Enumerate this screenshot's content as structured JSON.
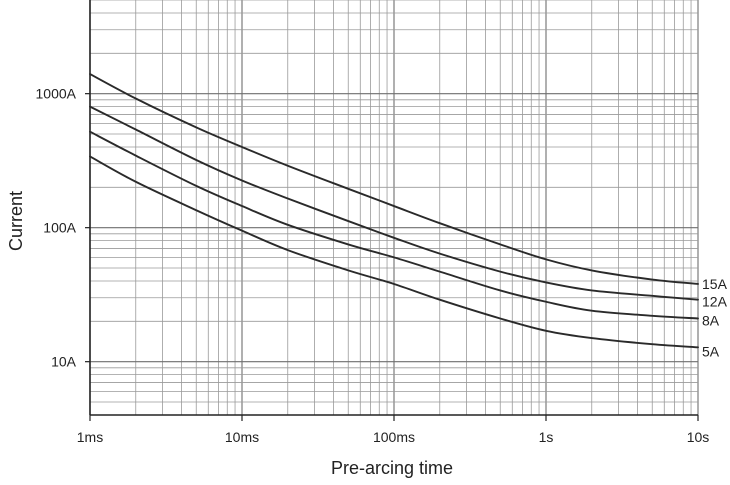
{
  "chart_data": {
    "type": "line",
    "title": "",
    "xlabel": "Pre-arcing time",
    "ylabel": "Current",
    "x_scale": "log",
    "y_scale": "log",
    "xlim": [
      0.001,
      10
    ],
    "ylim": [
      4,
      5000
    ],
    "grid": true,
    "legend": "inline labels at right end of curves",
    "x_ticks": [
      {
        "value": 0.001,
        "label": "1ms"
      },
      {
        "value": 0.01,
        "label": "10ms"
      },
      {
        "value": 0.1,
        "label": "100ms"
      },
      {
        "value": 1,
        "label": "1s"
      },
      {
        "value": 10,
        "label": "10s"
      }
    ],
    "y_ticks": [
      {
        "value": 10,
        "label": "10A"
      },
      {
        "value": 100,
        "label": "100A"
      },
      {
        "value": 1000,
        "label": "1000A"
      }
    ],
    "x": [
      0.001,
      0.002,
      0.005,
      0.01,
      0.02,
      0.05,
      0.1,
      0.2,
      0.5,
      1,
      2,
      5,
      10
    ],
    "series": [
      {
        "name": "15A",
        "values": [
          1400,
          920,
          560,
          400,
          290,
          195,
          145,
          108,
          75,
          58,
          48,
          41,
          38
        ]
      },
      {
        "name": "12A",
        "values": [
          800,
          540,
          320,
          225,
          165,
          112,
          84,
          64,
          47,
          39,
          34,
          31,
          29
        ]
      },
      {
        "name": "8A",
        "values": [
          520,
          345,
          205,
          145,
          105,
          75,
          60,
          47,
          34,
          28,
          24,
          22,
          21
        ]
      },
      {
        "name": "5A",
        "values": [
          340,
          220,
          135,
          95,
          68,
          48,
          38,
          29,
          21,
          17,
          15,
          13.5,
          12.8
        ]
      }
    ]
  },
  "colors": {
    "curve": "#2a2a2a",
    "major_grid": "#6f6f6f",
    "minor_grid": "#9a9a9a",
    "axis": "#222222"
  }
}
